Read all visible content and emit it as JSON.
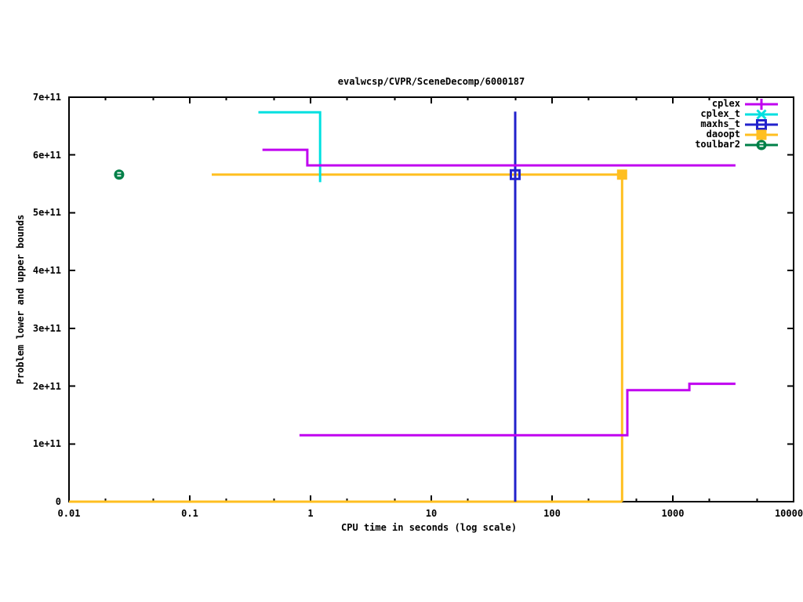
{
  "title": "evalwcsp/CVPR/SceneDecomp/6000187",
  "chart_data": {
    "type": "line-step",
    "title": "evalwcsp/CVPR/SceneDecomp/6000187",
    "xlabel": "CPU time in seconds (log scale)",
    "ylabel": "Problem lower and upper bounds",
    "x_scale": "log",
    "x_range": [
      0.01,
      10000
    ],
    "y_range": [
      0,
      700000000000.0
    ],
    "grid": false,
    "legend_position": "top-right-inside",
    "x_ticks": [
      {
        "value": 0.01,
        "label": "0.01"
      },
      {
        "value": 0.1,
        "label": "0.1"
      },
      {
        "value": 1,
        "label": "1"
      },
      {
        "value": 10,
        "label": "10"
      },
      {
        "value": 100,
        "label": "100"
      },
      {
        "value": 1000,
        "label": "1000"
      },
      {
        "value": 10000,
        "label": "10000"
      }
    ],
    "y_ticks": [
      {
        "value": 0,
        "label": "0"
      },
      {
        "value": 100000000000.0,
        "label": "1e+11"
      },
      {
        "value": 200000000000.0,
        "label": "2e+11"
      },
      {
        "value": 300000000000.0,
        "label": "3e+11"
      },
      {
        "value": 400000000000.0,
        "label": "4e+11"
      },
      {
        "value": 500000000000.0,
        "label": "5e+11"
      },
      {
        "value": 600000000000.0,
        "label": "6e+11"
      },
      {
        "value": 700000000000.0,
        "label": "7e+11"
      }
    ],
    "series": [
      {
        "name": "cplex",
        "color": "#c000f0",
        "marker": "plus",
        "segments": [
          [
            [
              0.4,
              609000000000.0
            ],
            [
              0.94,
              609000000000.0
            ],
            [
              0.94,
              582000000000.0
            ],
            [
              3300,
              582000000000.0
            ]
          ],
          [
            [
              0.81,
              115000000000.0
            ],
            [
              420,
              115000000000.0
            ],
            [
              420,
              193000000000.0
            ],
            [
              1370,
              193000000000.0
            ],
            [
              1370,
              204000000000.0
            ],
            [
              3300,
              204000000000.0
            ]
          ]
        ],
        "points": []
      },
      {
        "name": "cplex_t",
        "color": "#00e0e0",
        "marker": "cross",
        "segments": [
          [
            [
              0.37,
              674000000000.0
            ],
            [
              1.2,
              674000000000.0
            ],
            [
              1.2,
              553000000000.0
            ]
          ]
        ],
        "points": []
      },
      {
        "name": "maxhs_t",
        "color": "#2222cc",
        "marker": "open-square",
        "segments": [
          [
            [
              49.5,
              675000000000.0
            ],
            [
              49.5,
              0
            ]
          ]
        ],
        "points": [
          [
            49.5,
            566000000000.0
          ]
        ]
      },
      {
        "name": "daoopt",
        "color": "#ffbf20",
        "marker": "filled-square",
        "segments": [
          [
            [
              0.152,
              566000000000.0
            ],
            [
              380,
              566000000000.0
            ],
            [
              380,
              0
            ]
          ],
          [
            [
              0.01,
              0
            ],
            [
              380,
              0
            ]
          ]
        ],
        "points": [
          [
            380,
            566000000000.0
          ]
        ]
      },
      {
        "name": "toulbar2",
        "color": "#008048",
        "marker": "circle-dash",
        "segments": [],
        "points": [
          [
            0.026,
            566000000000.0
          ]
        ]
      }
    ]
  }
}
